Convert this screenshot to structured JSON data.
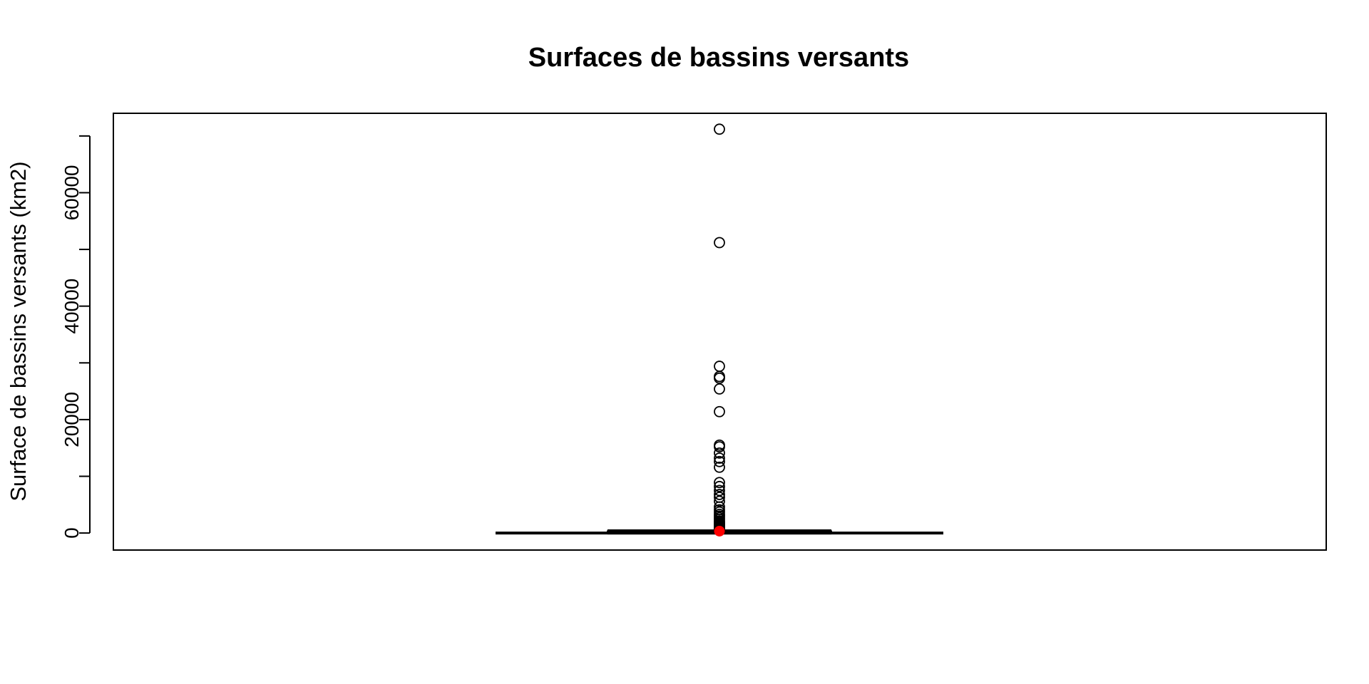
{
  "chart_data": {
    "type": "boxplot",
    "title": "Surfaces de bassins versants",
    "xlabel": "",
    "ylabel": "Surface de bassins versants (km2)",
    "ylim": [
      -3000,
      74000
    ],
    "yticks": [
      0,
      10000,
      20000,
      30000,
      40000,
      50000,
      60000,
      70000
    ],
    "ytick_labels": [
      "0",
      "",
      "20000",
      "",
      "40000",
      "",
      "60000",
      ""
    ],
    "grid": false,
    "legend": "none",
    "box": {
      "whisker_low": 0,
      "q1": 30,
      "median": 60,
      "q3": 200,
      "whisker_high": 450,
      "mean": 330
    },
    "outliers": [
      71200,
      51200,
      29400,
      27600,
      27300,
      25400,
      21400,
      15500,
      15200,
      14100,
      13200,
      12600,
      11600,
      8900,
      8200,
      7500,
      6800,
      6300,
      5600,
      4600,
      4100,
      3700,
      3300,
      3000,
      2700,
      2400,
      2100,
      1900,
      1700,
      1500,
      1300,
      1100,
      900,
      750,
      650,
      550,
      500
    ],
    "colors": {
      "box": "#000000",
      "outlier_stroke": "#000000",
      "mean_point": "#ff0000"
    }
  }
}
